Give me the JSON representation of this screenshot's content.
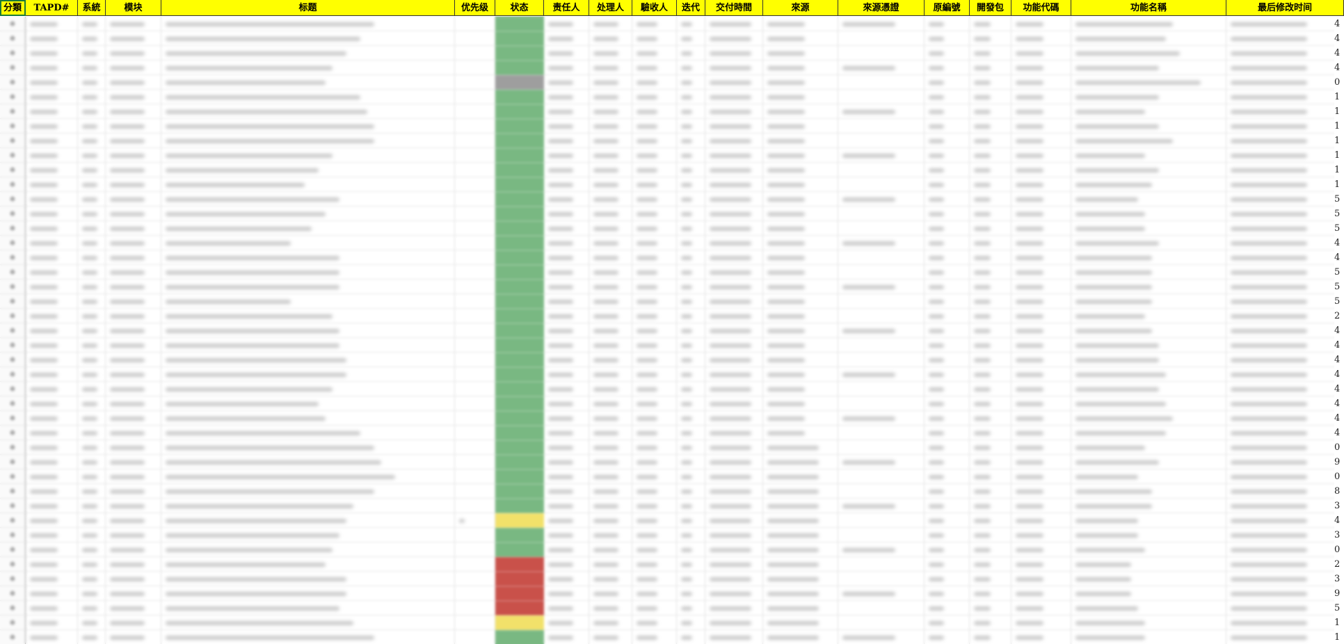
{
  "sheet": {
    "headers": [
      "分類",
      "TAPD#",
      "系統",
      "模块",
      "标题",
      "优先级",
      "状态",
      "责任人",
      "处理人",
      "驗收人",
      "迭代",
      "交付時間",
      "來源",
      "來源憑證",
      "原編號",
      "開發包",
      "功能代碼",
      "功能名稱",
      "最后修改时间"
    ],
    "colors": {
      "header_bg": "#ffff00",
      "status_green": "#79b882",
      "status_gray": "#9e9e9e",
      "status_yellow": "#f2e16a",
      "status_red": "#c9514a"
    },
    "row_status": [
      "green",
      "green",
      "green",
      "green",
      "gray",
      "green",
      "green",
      "green",
      "green",
      "green",
      "green",
      "green",
      "green",
      "green",
      "green",
      "green",
      "green",
      "green",
      "green",
      "green",
      "green",
      "green",
      "green",
      "green",
      "green",
      "green",
      "green",
      "green",
      "green",
      "green",
      "green",
      "green",
      "green",
      "green",
      "yellow",
      "green",
      "green",
      "red",
      "red",
      "red",
      "red",
      "yellow",
      "green"
    ],
    "row_marker": "※",
    "edge_digits": [
      "4",
      "4",
      "4",
      "4",
      "0",
      "1",
      "1",
      "1",
      "1",
      "1",
      "1",
      "1",
      "5",
      "5",
      "5",
      "4",
      "4",
      "5",
      "5",
      "5",
      "2",
      "4",
      "4",
      "4",
      "4",
      "4",
      "4",
      "4",
      "4",
      "0",
      "9",
      "0",
      "8",
      "3",
      "4",
      "3",
      "0",
      "2",
      "3",
      "9",
      "5",
      "1",
      "1"
    ]
  }
}
